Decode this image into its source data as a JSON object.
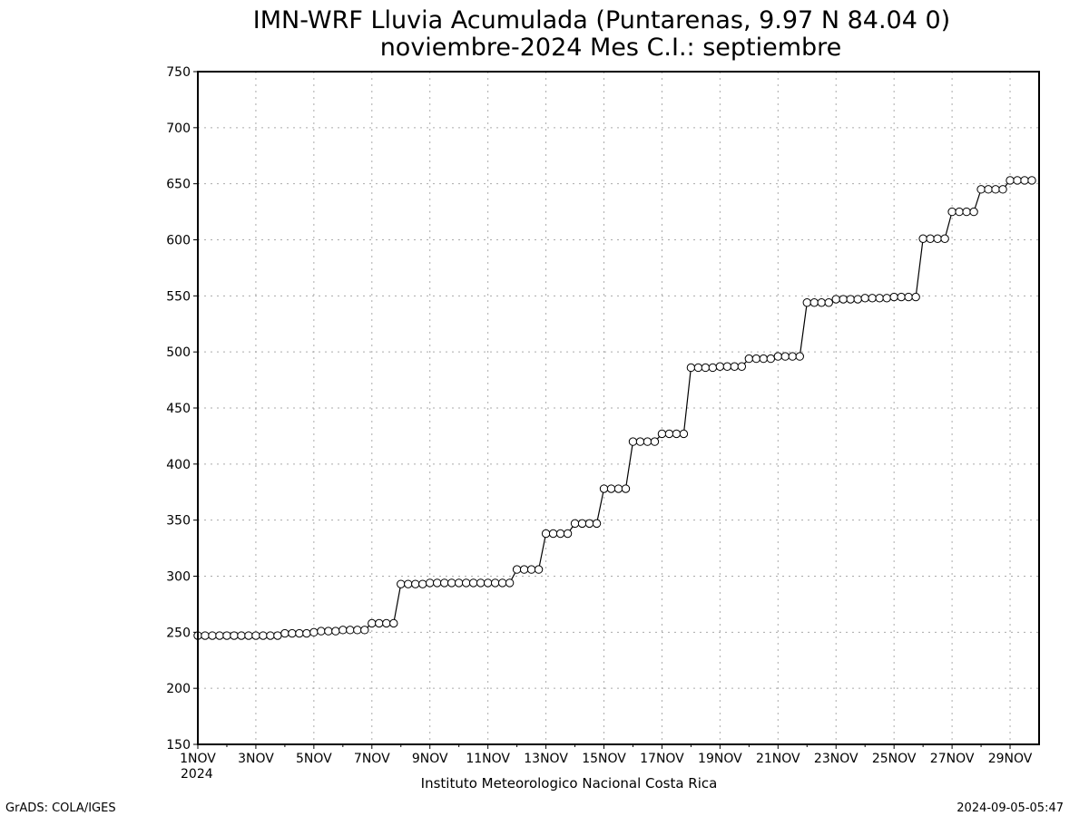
{
  "chart_data": {
    "type": "line",
    "title": "IMN-WRF  Lluvia Acumulada (Puntarenas, 9.97  N 84.04  0)",
    "subtitle": "noviembre-2024 Mes C.I.: septiembre",
    "xlabel": "",
    "ylabel": "",
    "ylim": [
      150,
      750
    ],
    "yticks": [
      150,
      200,
      250,
      300,
      350,
      400,
      450,
      500,
      550,
      600,
      650,
      700,
      750
    ],
    "xlim": [
      1,
      30
    ],
    "xticks": [
      {
        "day": 1,
        "label": "1NOV"
      },
      {
        "day": 3,
        "label": "3NOV"
      },
      {
        "day": 5,
        "label": "5NOV"
      },
      {
        "day": 7,
        "label": "7NOV"
      },
      {
        "day": 9,
        "label": "9NOV"
      },
      {
        "day": 11,
        "label": "11NOV"
      },
      {
        "day": 13,
        "label": "13NOV"
      },
      {
        "day": 15,
        "label": "15NOV"
      },
      {
        "day": 17,
        "label": "17NOV"
      },
      {
        "day": 19,
        "label": "19NOV"
      },
      {
        "day": 21,
        "label": "21NOV"
      },
      {
        "day": 23,
        "label": "23NOV"
      },
      {
        "day": 25,
        "label": "25NOV"
      },
      {
        "day": 27,
        "label": "27NOV"
      },
      {
        "day": 29,
        "label": "29NOV"
      }
    ],
    "year_label": "2024",
    "grid": true,
    "marker": "open-circle",
    "series": [
      {
        "x_start_day": 1,
        "step_days": 0.25,
        "values": [
          247,
          247,
          247,
          247,
          247,
          247,
          247,
          247,
          247,
          247,
          247,
          247,
          249,
          249,
          249,
          249,
          250,
          251,
          251,
          251,
          252,
          252,
          252,
          252,
          258,
          258,
          258,
          258,
          293,
          293,
          293,
          293,
          294,
          294,
          294,
          294,
          294,
          294,
          294,
          294,
          294,
          294,
          294,
          294,
          306,
          306,
          306,
          306,
          338,
          338,
          338,
          338,
          347,
          347,
          347,
          347,
          378,
          378,
          378,
          378,
          420,
          420,
          420,
          420,
          427,
          427,
          427,
          427,
          486,
          486,
          486,
          486,
          487,
          487,
          487,
          487,
          494,
          494,
          494,
          494,
          496,
          496,
          496,
          496,
          544,
          544,
          544,
          544,
          547,
          547,
          547,
          547,
          548,
          548,
          548,
          548,
          549,
          549,
          549,
          549,
          601,
          601,
          601,
          601,
          625,
          625,
          625,
          625,
          645,
          645,
          645,
          645,
          653,
          653,
          653,
          653
        ]
      }
    ]
  },
  "footer": {
    "institution": "Instituto Meteorologico Nacional Costa Rica",
    "software": "GrADS: COLA/IGES",
    "timestamp": "2024-09-05-05:47"
  },
  "colors": {
    "background": "#ffffff",
    "foreground": "#000000",
    "grid": "#aaaaaa",
    "marker_fill": "#ffffff"
  }
}
